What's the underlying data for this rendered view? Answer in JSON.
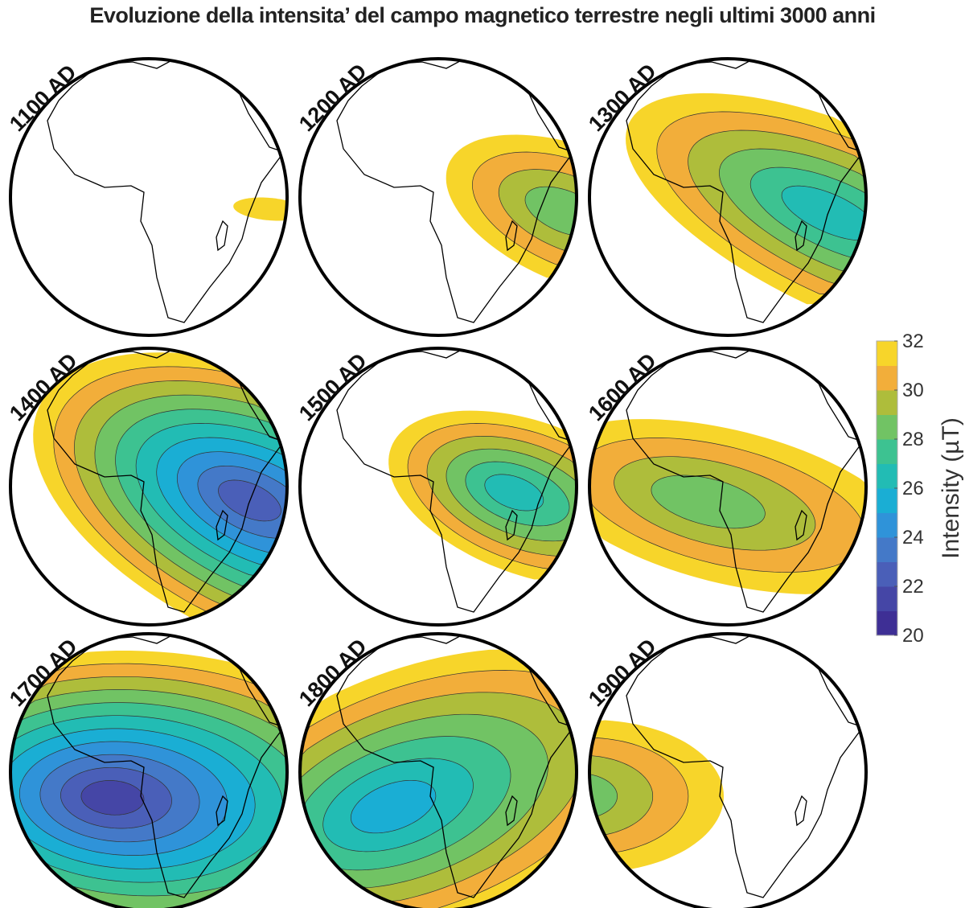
{
  "title": "Evoluzione della intensita’ del campo magnetico terrestre negli ultimi 3000 anni",
  "panels": [
    {
      "label": "1100 AD",
      "min_intensity": 31
    },
    {
      "label": "1200 AD",
      "min_intensity": 28
    },
    {
      "label": "1300 AD",
      "min_intensity": 26
    },
    {
      "label": "1400 AD",
      "min_intensity": 22
    },
    {
      "label": "1500 AD",
      "min_intensity": 26
    },
    {
      "label": "1600 AD",
      "min_intensity": 28
    },
    {
      "label": "1700 AD",
      "min_intensity": 21
    },
    {
      "label": "1800 AD",
      "min_intensity": 25
    },
    {
      "label": "1900 AD",
      "min_intensity": 28
    }
  ],
  "colorbar": {
    "label": "Intensity (µT)",
    "min": 20,
    "max": 32,
    "ticks": [
      "20",
      "22",
      "24",
      "26",
      "28",
      "30",
      "32"
    ],
    "colors": [
      "#3e2f95",
      "#4546a6",
      "#4a5fb8",
      "#4479c8",
      "#2f93d9",
      "#1aaed4",
      "#22bcb4",
      "#3dc291",
      "#71c364",
      "#aebd3b",
      "#f2ae3a",
      "#f7d52a"
    ]
  }
}
